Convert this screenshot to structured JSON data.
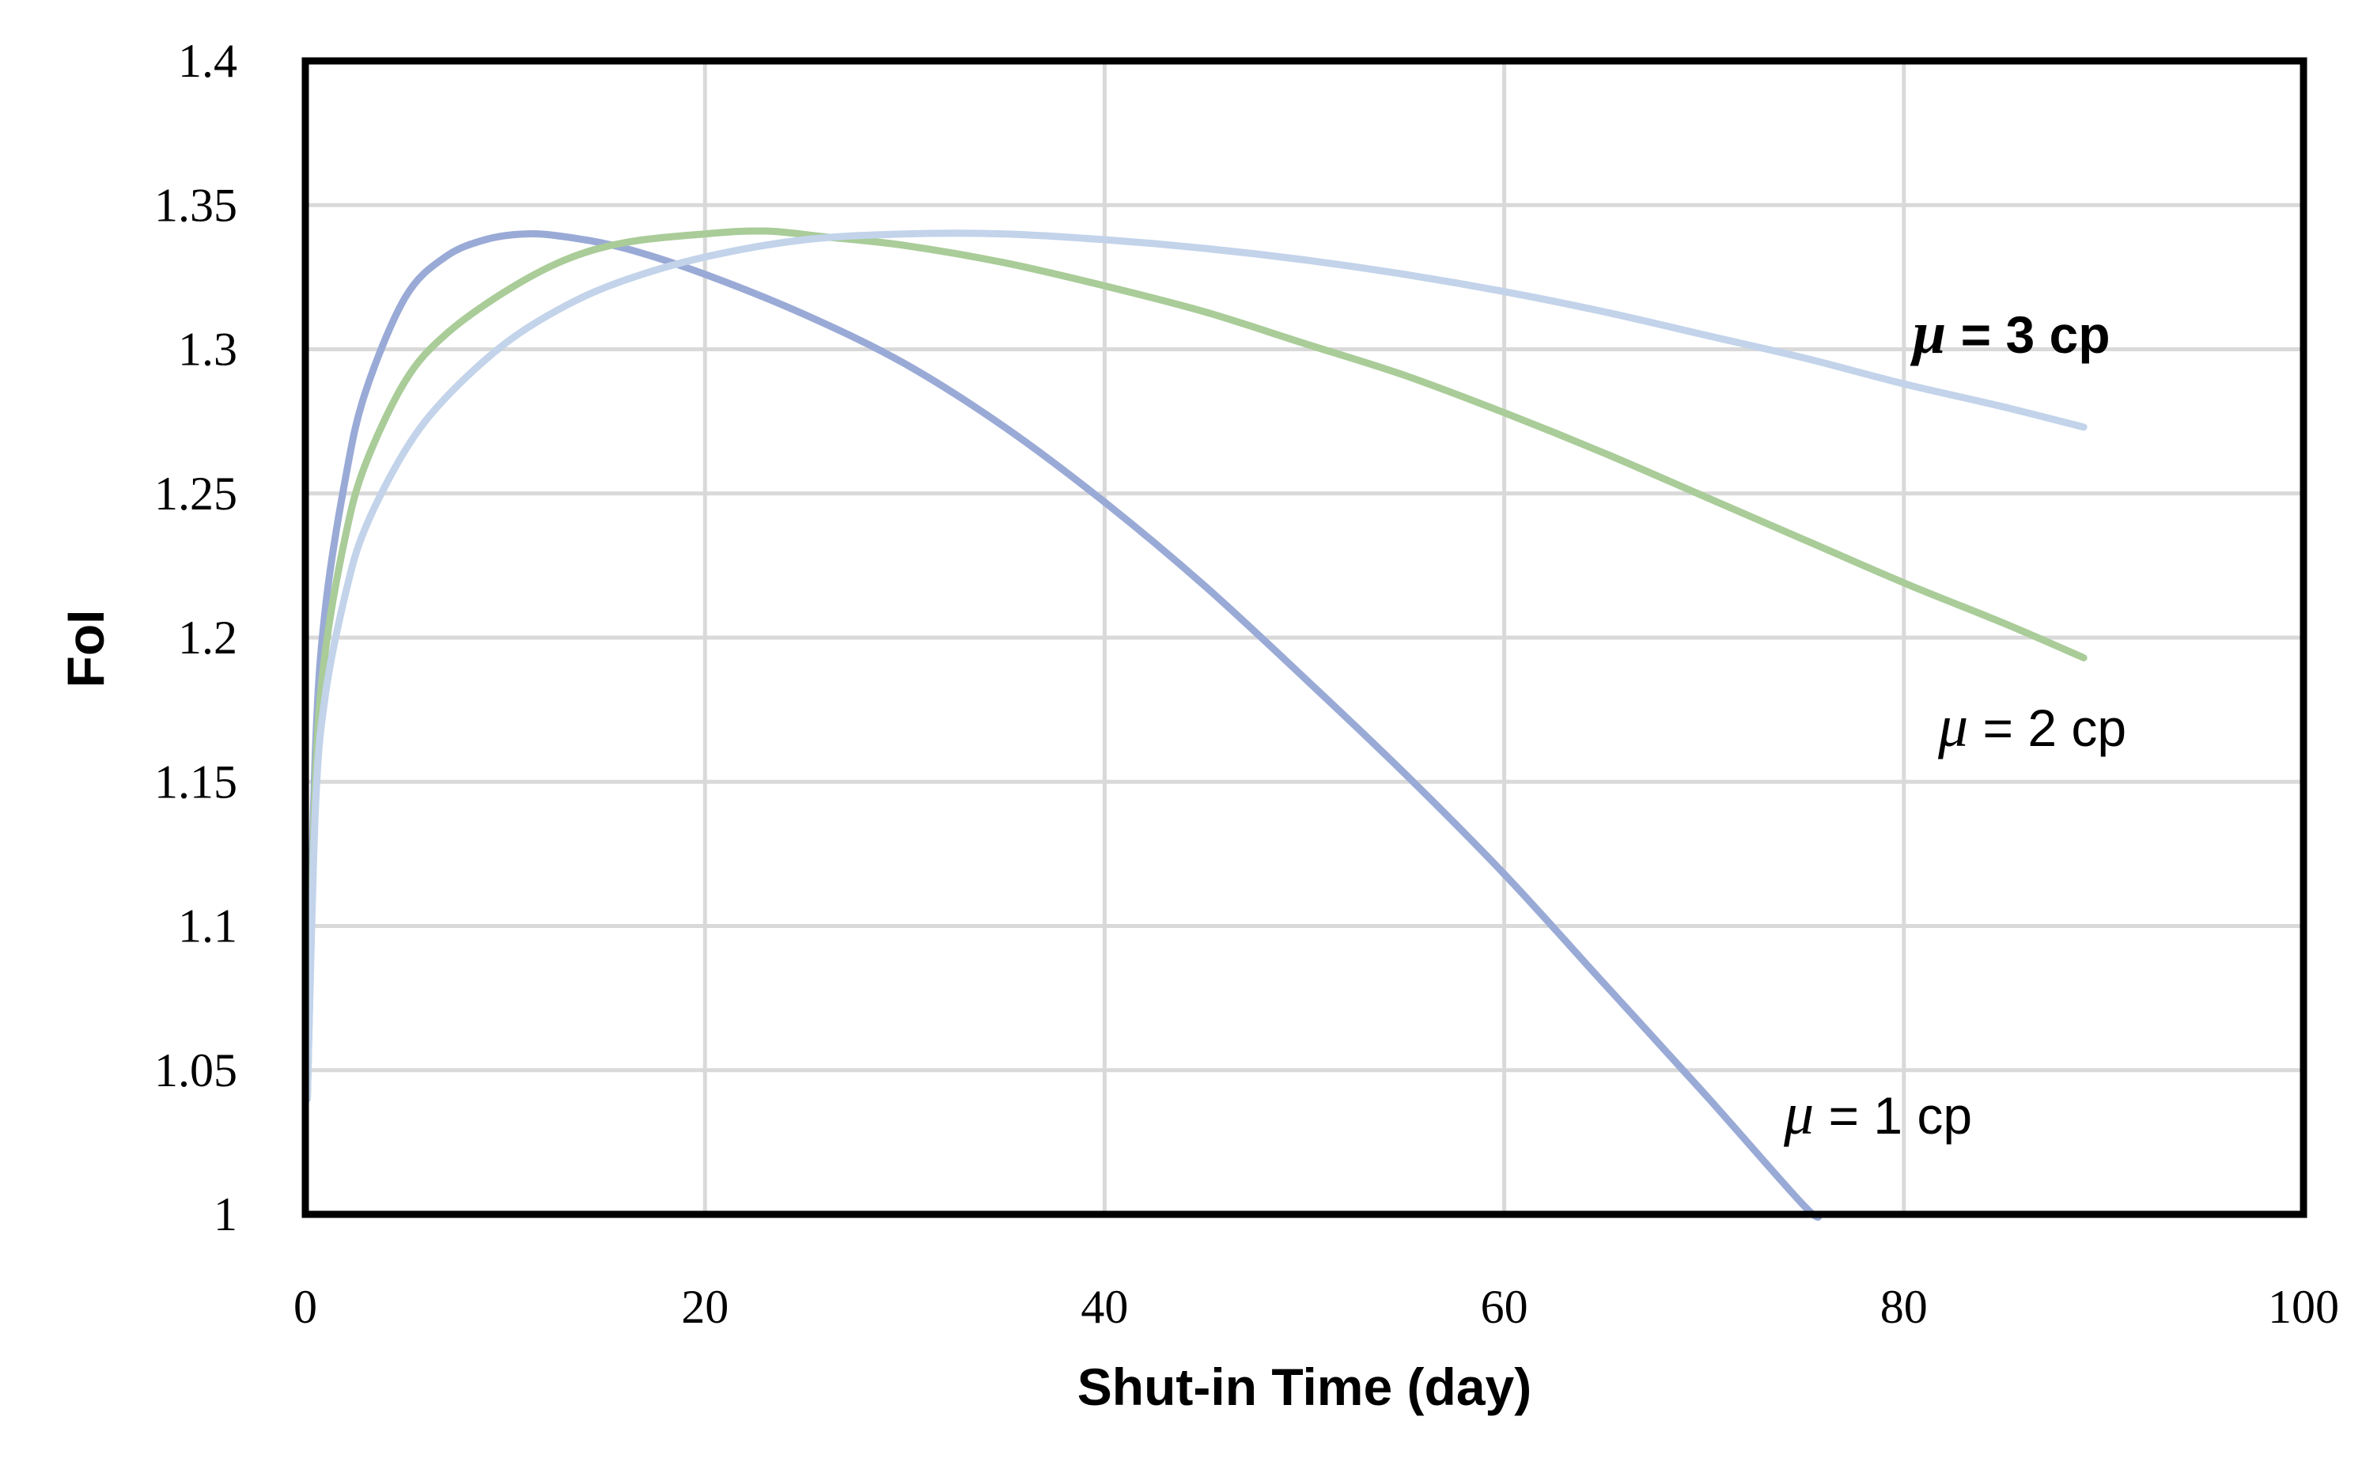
{
  "chart_data": {
    "type": "line",
    "title": "",
    "xlabel": "Shut-in Time (day)",
    "ylabel": "FoI",
    "xlim": [
      0,
      100
    ],
    "ylim": [
      1,
      1.4
    ],
    "x_ticks": [
      "0",
      "20",
      "40",
      "60",
      "80",
      "100"
    ],
    "y_ticks": [
      "1",
      "1.05",
      "1.1",
      "1.15",
      "1.2",
      "1.25",
      "1.3",
      "1.35",
      "1.4"
    ],
    "grid": true,
    "legend": "none",
    "series": [
      {
        "label_symbol": "μ",
        "label_text": " = 1 cp",
        "label_bold": false,
        "color": "#9aaad6",
        "points": [
          [
            0.1,
            1.05
          ],
          [
            0.5,
            1.16
          ],
          [
            1,
            1.21
          ],
          [
            2,
            1.255
          ],
          [
            3,
            1.285
          ],
          [
            5,
            1.318
          ],
          [
            7,
            1.332
          ],
          [
            9,
            1.338
          ],
          [
            11,
            1.34
          ],
          [
            13,
            1.339
          ],
          [
            16,
            1.335
          ],
          [
            20,
            1.326
          ],
          [
            25,
            1.312
          ],
          [
            30,
            1.295
          ],
          [
            35,
            1.273
          ],
          [
            40,
            1.247
          ],
          [
            45,
            1.218
          ],
          [
            50,
            1.186
          ],
          [
            55,
            1.153
          ],
          [
            60,
            1.118
          ],
          [
            65,
            1.08
          ],
          [
            70,
            1.042
          ],
          [
            75,
            1.003
          ],
          [
            75.8,
            1.0
          ]
        ]
      },
      {
        "label_symbol": "μ",
        "label_text": " = 2 cp",
        "label_bold": false,
        "color": "#a9cc98",
        "points": [
          [
            0.1,
            1.04
          ],
          [
            0.5,
            1.15
          ],
          [
            1,
            1.195
          ],
          [
            2,
            1.235
          ],
          [
            3,
            1.26
          ],
          [
            5,
            1.289
          ],
          [
            7,
            1.305
          ],
          [
            10,
            1.32
          ],
          [
            13,
            1.331
          ],
          [
            16,
            1.337
          ],
          [
            20,
            1.34
          ],
          [
            23,
            1.341
          ],
          [
            26,
            1.339
          ],
          [
            30,
            1.336
          ],
          [
            35,
            1.33
          ],
          [
            40,
            1.322
          ],
          [
            45,
            1.313
          ],
          [
            50,
            1.302
          ],
          [
            55,
            1.291
          ],
          [
            60,
            1.278
          ],
          [
            65,
            1.264
          ],
          [
            70,
            1.249
          ],
          [
            75,
            1.234
          ],
          [
            80,
            1.219
          ],
          [
            85,
            1.205
          ],
          [
            89,
            1.193
          ]
        ]
      },
      {
        "label_symbol": "μ",
        "label_text": " = 3 cp",
        "label_bold": true,
        "color": "#c2d3ea",
        "points": [
          [
            0.1,
            1.04
          ],
          [
            0.5,
            1.14
          ],
          [
            1,
            1.18
          ],
          [
            2,
            1.215
          ],
          [
            3,
            1.238
          ],
          [
            5,
            1.265
          ],
          [
            7,
            1.283
          ],
          [
            10,
            1.302
          ],
          [
            13,
            1.315
          ],
          [
            16,
            1.324
          ],
          [
            20,
            1.332
          ],
          [
            25,
            1.338
          ],
          [
            30,
            1.34
          ],
          [
            35,
            1.34
          ],
          [
            40,
            1.338
          ],
          [
            45,
            1.335
          ],
          [
            50,
            1.331
          ],
          [
            55,
            1.326
          ],
          [
            60,
            1.32
          ],
          [
            65,
            1.313
          ],
          [
            70,
            1.305
          ],
          [
            75,
            1.297
          ],
          [
            80,
            1.288
          ],
          [
            85,
            1.28
          ],
          [
            89,
            1.273
          ]
        ]
      }
    ]
  }
}
